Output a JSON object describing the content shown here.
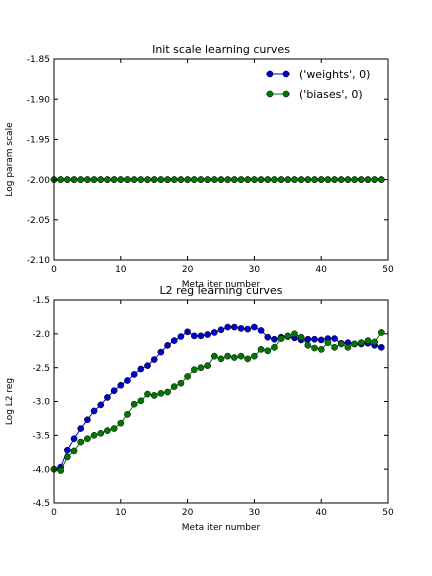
{
  "chart_data": [
    {
      "type": "line",
      "title": "Init scale learning curves",
      "xlabel": "Meta iter number",
      "ylabel": "Log param scale",
      "xlim": [
        0,
        50
      ],
      "ylim": [
        -2.1,
        -1.85
      ],
      "xticks": [
        0,
        10,
        20,
        30,
        40,
        50
      ],
      "yticks": [
        -1.85,
        -1.9,
        -1.95,
        -2.0,
        -2.05,
        -2.1
      ],
      "ytick_labels": [
        "-1.85",
        "-1.90",
        "-1.95",
        "-2.00",
        "-2.05",
        "-2.10"
      ],
      "legend": "top-right",
      "grid": false,
      "series": [
        {
          "name": "('weights', 0)",
          "color": "#0000cc",
          "values": [
            -2.0,
            -2.0,
            -2.0,
            -2.0,
            -2.0,
            -2.0,
            -2.0,
            -2.0,
            -2.0,
            -2.0,
            -2.0,
            -2.0,
            -2.0,
            -2.0,
            -2.0,
            -2.0,
            -2.0,
            -2.0,
            -2.0,
            -2.0,
            -2.0,
            -2.0,
            -2.0,
            -2.0,
            -2.0,
            -2.0,
            -2.0,
            -2.0,
            -2.0,
            -2.0,
            -2.0,
            -2.0,
            -2.0,
            -2.0,
            -2.0,
            -2.0,
            -2.0,
            -2.0,
            -2.0,
            -2.0,
            -2.0,
            -2.0,
            -2.0,
            -2.0,
            -2.0,
            -2.0,
            -2.0,
            -2.0,
            -2.0,
            -2.0
          ]
        },
        {
          "name": "('biases', 0)",
          "color": "#007700",
          "values": [
            -2.0,
            -2.0,
            -2.0,
            -2.0,
            -2.0,
            -2.0,
            -2.0,
            -2.0,
            -2.0,
            -2.0,
            -2.0,
            -2.0,
            -2.0,
            -2.0,
            -2.0,
            -2.0,
            -2.0,
            -2.0,
            -2.0,
            -2.0,
            -2.0,
            -2.0,
            -2.0,
            -2.0,
            -2.0,
            -2.0,
            -2.0,
            -2.0,
            -2.0,
            -2.0,
            -2.0,
            -2.0,
            -2.0,
            -2.0,
            -2.0,
            -2.0,
            -2.0,
            -2.0,
            -2.0,
            -2.0,
            -2.0,
            -2.0,
            -2.0,
            -2.0,
            -2.0,
            -2.0,
            -2.0,
            -2.0,
            -2.0,
            -2.0
          ]
        }
      ]
    },
    {
      "type": "line",
      "title": "L2 reg learning curves",
      "xlabel": "Meta iter number",
      "ylabel": "Log L2 reg",
      "xlim": [
        0,
        50
      ],
      "ylim": [
        -4.5,
        -1.5
      ],
      "xticks": [
        0,
        10,
        20,
        30,
        40,
        50
      ],
      "yticks": [
        -1.5,
        -2.0,
        -2.5,
        -3.0,
        -3.5,
        -4.0,
        -4.5
      ],
      "ytick_labels": [
        "-1.5",
        "-2.0",
        "-2.5",
        "-3.0",
        "-3.5",
        "-4.0",
        "-4.5"
      ],
      "grid": false,
      "series": [
        {
          "color": "#0000cc",
          "values": [
            -4.0,
            -3.97,
            -3.72,
            -3.55,
            -3.4,
            -3.27,
            -3.14,
            -3.05,
            -2.94,
            -2.84,
            -2.76,
            -2.69,
            -2.6,
            -2.52,
            -2.47,
            -2.38,
            -2.27,
            -2.17,
            -2.1,
            -2.04,
            -1.97,
            -2.03,
            -2.03,
            -2.01,
            -1.98,
            -1.94,
            -1.9,
            -1.9,
            -1.92,
            -1.93,
            -1.9,
            -1.95,
            -2.05,
            -2.08,
            -2.05,
            -2.04,
            -2.06,
            -2.09,
            -2.08,
            -2.08,
            -2.09,
            -2.07,
            -2.07,
            -2.14,
            -2.13,
            -2.15,
            -2.15,
            -2.14,
            -2.17,
            -2.2
          ]
        },
        {
          "color": "#007700",
          "values": [
            -4.0,
            -4.02,
            -3.82,
            -3.73,
            -3.6,
            -3.55,
            -3.5,
            -3.47,
            -3.43,
            -3.4,
            -3.32,
            -3.19,
            -3.04,
            -2.99,
            -2.89,
            -2.91,
            -2.88,
            -2.86,
            -2.78,
            -2.73,
            -2.63,
            -2.53,
            -2.5,
            -2.47,
            -2.33,
            -2.37,
            -2.33,
            -2.35,
            -2.33,
            -2.37,
            -2.33,
            -2.23,
            -2.25,
            -2.2,
            -2.07,
            -2.03,
            -2.0,
            -2.05,
            -2.17,
            -2.21,
            -2.23,
            -2.13,
            -2.2,
            -2.15,
            -2.2,
            -2.15,
            -2.13,
            -2.1,
            -2.12,
            -1.98
          ]
        }
      ]
    }
  ]
}
